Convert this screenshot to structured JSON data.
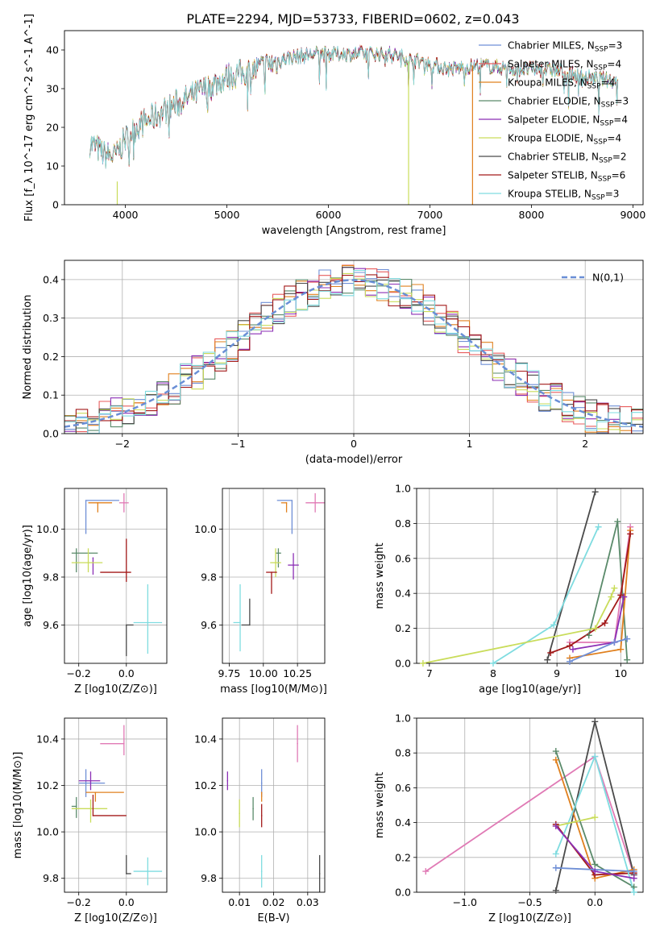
{
  "figure_title": "PLATE=2294, MJD=53733, FIBERID=0602, z=0.043",
  "colors": {
    "Chabrier MILES": "#6f8fd6",
    "Salpeter MILES": "#e85d5d",
    "Kroupa MILES": "#e0801e",
    "Chabrier ELODIE": "#5a8a6a",
    "Salpeter ELODIE": "#8b2fb5",
    "Kroupa ELODIE": "#c9dc5a",
    "Chabrier STELIB": "#4a4a4a",
    "Salpeter STELIB": "#a31a1a",
    "Kroupa STELIB": "#7fdce0",
    "pink": "#e07ab5",
    "gaussian": "#6a8fd6"
  },
  "chart_data": [
    {
      "id": "spectrum",
      "type": "line",
      "xlabel": "wavelength [Angstrom, rest frame]",
      "ylabel": "Flux [f_λ 10^-17 erg cm^-2 s^-1 A^-1]",
      "xlim": [
        3400,
        9100
      ],
      "ylim": [
        0,
        45
      ],
      "xticks": [
        4000,
        5000,
        6000,
        7000,
        8000,
        9000
      ],
      "yticks": [
        0,
        10,
        20,
        30,
        40
      ],
      "legend_position": "top-right",
      "legend": [
        {
          "label": "Chabrier MILES, N_SSP=3",
          "color": "#6f8fd6"
        },
        {
          "label": "Salpeter MILES, N_SSP=4",
          "color": "#e85d5d"
        },
        {
          "label": "Kroupa MILES, N_SSP=4",
          "color": "#e0801e"
        },
        {
          "label": "Chabrier ELODIE, N_SSP=3",
          "color": "#5a8a6a"
        },
        {
          "label": "Salpeter ELODIE, N_SSP=4",
          "color": "#8b2fb5"
        },
        {
          "label": "Kroupa ELODIE, N_SSP=4",
          "color": "#c9dc5a"
        },
        {
          "label": "Chabrier STELIB, N_SSP=2",
          "color": "#4a4a4a"
        },
        {
          "label": "Salpeter STELIB, N_SSP=6",
          "color": "#a31a1a"
        },
        {
          "label": "Kroupa STELIB, N_SSP=3",
          "color": "#7fdce0"
        }
      ],
      "continuum_x": [
        3650,
        3800,
        3900,
        4000,
        4100,
        4300,
        4500,
        4800,
        5000,
        5300,
        5600,
        5900,
        6200,
        6600,
        6900,
        7200,
        7500,
        7900,
        8200,
        8500,
        8850
      ],
      "continuum_y": [
        16,
        13,
        12.5,
        17,
        20,
        23,
        26,
        30,
        33,
        35,
        38,
        39,
        39,
        39,
        37,
        35,
        36,
        35,
        35,
        33,
        32
      ],
      "artifacts": [
        {
          "x": 3920,
          "ymin": 0,
          "ymax": 6,
          "color": "#c9dc5a"
        },
        {
          "x": 6790,
          "ymin": 0,
          "ymax": 37,
          "color": "#c9dc5a"
        },
        {
          "x": 7420,
          "ymin": 0,
          "ymax": 36,
          "color": "#e0801e"
        }
      ]
    },
    {
      "id": "residuals",
      "type": "line",
      "xlabel": "(data-model)/error",
      "ylabel": "Normed distribution",
      "xlim": [
        -2.5,
        2.5
      ],
      "ylim": [
        0,
        0.45
      ],
      "xticks": [
        -2,
        -1,
        0,
        1,
        2
      ],
      "yticks": [
        0.0,
        0.1,
        0.2,
        0.3,
        0.4
      ],
      "grid": true,
      "legend_position": "top-right",
      "gaussian_label": "N(0,1)"
    },
    {
      "id": "age-vs-Z",
      "type": "scatter",
      "xlabel": "Z [log10(Z/Z⊙)]",
      "ylabel": "age [log10(age/yr)]",
      "xlim": [
        -0.26,
        0.17
      ],
      "ylim": [
        9.44,
        10.17
      ],
      "xticks": [
        -0.2,
        0.0
      ],
      "yticks": [
        9.6,
        9.8,
        10.0
      ],
      "grid": true,
      "points": [
        {
          "x": -0.17,
          "y": 10.12,
          "xerr": [
            0.0,
            0.14
          ],
          "yerr": [
            0.14,
            0.0
          ],
          "color": "#6f8fd6"
        },
        {
          "x": -0.12,
          "y": 10.11,
          "xerr": [
            0.04,
            0.06
          ],
          "yerr": [
            0.04,
            0.0
          ],
          "color": "#e0801e"
        },
        {
          "x": -0.01,
          "y": 10.11,
          "xerr": [
            0.02,
            0.02
          ],
          "yerr": [
            0.04,
            0.04
          ],
          "color": "#e07ab5"
        },
        {
          "x": -0.21,
          "y": 9.9,
          "xerr": [
            0.02,
            0.09
          ],
          "yerr": [
            0.08,
            0.02
          ],
          "color": "#5a8a6a"
        },
        {
          "x": -0.14,
          "y": 9.88,
          "xerr": [
            0.0,
            0.0
          ],
          "yerr": [
            0.07,
            0.0
          ],
          "color": "#8b2fb5"
        },
        {
          "x": -0.16,
          "y": 9.86,
          "xerr": [
            0.07,
            0.06
          ],
          "yerr": [
            0.04,
            0.06
          ],
          "color": "#c9dc5a"
        },
        {
          "x": 0.0,
          "y": 9.82,
          "xerr": [
            0.11,
            0.02
          ],
          "yerr": [
            0.04,
            0.14
          ],
          "color": "#a31a1a"
        },
        {
          "x": 0.0,
          "y": 9.6,
          "xerr": [
            0.0,
            0.03
          ],
          "yerr": [
            0.13,
            0.0
          ],
          "color": "#4a4a4a"
        },
        {
          "x": 0.09,
          "y": 9.61,
          "xerr": [
            0.06,
            0.06
          ],
          "yerr": [
            0.13,
            0.16
          ],
          "color": "#7fdce0"
        }
      ]
    },
    {
      "id": "age-vs-mass",
      "type": "scatter",
      "xlabel": "mass [log10(M/M⊙)]",
      "ylabel": "",
      "xlim": [
        9.7,
        10.45
      ],
      "ylim": [
        9.44,
        10.17
      ],
      "xticks": [
        9.75,
        10.0,
        10.25
      ],
      "yticks": [
        9.6,
        9.8,
        10.0
      ],
      "grid": true,
      "points": [
        {
          "x": 10.21,
          "y": 10.12,
          "xerr": [
            0.11,
            0.0
          ],
          "yerr": [
            0.14,
            0.0
          ],
          "color": "#6f8fd6"
        },
        {
          "x": 10.17,
          "y": 10.11,
          "xerr": [
            0.04,
            0.0
          ],
          "yerr": [
            0.04,
            0.0
          ],
          "color": "#e0801e"
        },
        {
          "x": 10.38,
          "y": 10.11,
          "xerr": [
            0.07,
            0.07
          ],
          "yerr": [
            0.04,
            0.04
          ],
          "color": "#e07ab5"
        },
        {
          "x": 10.11,
          "y": 9.9,
          "xerr": [
            0.02,
            0.02
          ],
          "yerr": [
            0.06,
            0.02
          ],
          "color": "#5a8a6a"
        },
        {
          "x": 10.22,
          "y": 9.85,
          "xerr": [
            0.04,
            0.04
          ],
          "yerr": [
            0.06,
            0.05
          ],
          "color": "#8b2fb5"
        },
        {
          "x": 10.09,
          "y": 9.86,
          "xerr": [
            0.04,
            0.04
          ],
          "yerr": [
            0.06,
            0.06
          ],
          "color": "#c9dc5a"
        },
        {
          "x": 10.06,
          "y": 9.82,
          "xerr": [
            0.04,
            0.04
          ],
          "yerr": [
            0.09,
            0.0
          ],
          "color": "#a31a1a"
        },
        {
          "x": 9.9,
          "y": 9.6,
          "xerr": [
            0.06,
            0.0
          ],
          "yerr": [
            0.0,
            0.11
          ],
          "color": "#4a4a4a"
        },
        {
          "x": 9.83,
          "y": 9.61,
          "xerr": [
            0.05,
            0.0
          ],
          "yerr": [
            0.12,
            0.16
          ],
          "color": "#7fdce0"
        }
      ]
    },
    {
      "id": "weight-vs-age",
      "type": "line",
      "xlabel": "age [log10(age/yr)]",
      "ylabel": "mass weight",
      "xlim": [
        6.8,
        10.35
      ],
      "ylim": [
        0,
        1.0
      ],
      "xticks": [
        7,
        8,
        9,
        10
      ],
      "yticks": [
        0.0,
        0.2,
        0.4,
        0.6,
        0.8,
        1.0
      ],
      "grid": true,
      "series": [
        {
          "color": "#4a4a4a",
          "x": [
            8.85,
            9.6
          ],
          "y": [
            0.02,
            0.98
          ]
        },
        {
          "color": "#7fdce0",
          "x": [
            8.0,
            8.95,
            9.65
          ],
          "y": [
            0.0,
            0.22,
            0.78
          ]
        },
        {
          "color": "#5a8a6a",
          "x": [
            9.5,
            9.95,
            10.1
          ],
          "y": [
            0.16,
            0.81,
            0.02
          ]
        },
        {
          "color": "#e07ab5",
          "x": [
            9.2,
            9.9,
            10.15
          ],
          "y": [
            0.12,
            0.12,
            0.78
          ]
        },
        {
          "color": "#e0801e",
          "x": [
            9.2,
            10.0,
            10.15
          ],
          "y": [
            0.03,
            0.08,
            0.76
          ]
        },
        {
          "color": "#a31a1a",
          "x": [
            8.9,
            9.2,
            9.75,
            10.0,
            10.15
          ],
          "y": [
            0.06,
            0.1,
            0.23,
            0.39,
            0.74
          ]
        },
        {
          "color": "#c9dc5a",
          "x": [
            6.9,
            9.6,
            9.85,
            9.9
          ],
          "y": [
            0.0,
            0.2,
            0.38,
            0.43
          ]
        },
        {
          "color": "#8b2fb5",
          "x": [
            9.25,
            9.9,
            10.05
          ],
          "y": [
            0.08,
            0.12,
            0.38
          ]
        },
        {
          "color": "#6f8fd6",
          "x": [
            9.2,
            9.9,
            10.1
          ],
          "y": [
            0.01,
            0.12,
            0.14
          ]
        }
      ]
    },
    {
      "id": "mass-vs-Z",
      "type": "scatter",
      "xlabel": "Z [log10(Z/Z⊙)]",
      "ylabel": "mass [log10(M/M⊙)]",
      "xlim": [
        -0.26,
        0.17
      ],
      "ylim": [
        9.74,
        10.49
      ],
      "xticks": [
        -0.2,
        0.0
      ],
      "yticks": [
        9.8,
        10.0,
        10.2,
        10.4
      ],
      "grid": true,
      "points": [
        {
          "x": -0.01,
          "y": 10.38,
          "xerr": [
            0.1,
            0.0
          ],
          "yerr": [
            0.05,
            0.08
          ],
          "color": "#e07ab5"
        },
        {
          "x": -0.17,
          "y": 10.21,
          "xerr": [
            0.03,
            0.08
          ],
          "yerr": [
            0.06,
            0.06
          ],
          "color": "#6f8fd6"
        },
        {
          "x": -0.15,
          "y": 10.22,
          "xerr": [
            0.05,
            0.04
          ],
          "yerr": [
            0.04,
            0.04
          ],
          "color": "#8b2fb5"
        },
        {
          "x": -0.13,
          "y": 10.17,
          "xerr": [
            0.04,
            0.12
          ],
          "yerr": [
            0.04,
            0.0
          ],
          "color": "#e0801e"
        },
        {
          "x": -0.21,
          "y": 10.11,
          "xerr": [
            0.02,
            0.0
          ],
          "yerr": [
            0.05,
            0.04
          ],
          "color": "#5a8a6a"
        },
        {
          "x": -0.15,
          "y": 10.1,
          "xerr": [
            0.08,
            0.07
          ],
          "yerr": [
            0.06,
            0.04
          ],
          "color": "#c9dc5a"
        },
        {
          "x": -0.14,
          "y": 10.07,
          "xerr": [
            0.0,
            0.14
          ],
          "yerr": [
            0.0,
            0.09
          ],
          "color": "#a31a1a"
        },
        {
          "x": 0.0,
          "y": 9.82,
          "xerr": [
            0.0,
            0.02
          ],
          "yerr": [
            0.0,
            0.08
          ],
          "color": "#4a4a4a"
        },
        {
          "x": 0.09,
          "y": 9.83,
          "xerr": [
            0.06,
            0.06
          ],
          "yerr": [
            0.06,
            0.06
          ],
          "color": "#7fdce0"
        }
      ]
    },
    {
      "id": "mass-vs-EBV",
      "type": "scatter",
      "xlabel": "E(B-V)",
      "ylabel": "",
      "xlim": [
        0.005,
        0.035
      ],
      "ylim": [
        9.74,
        10.49
      ],
      "xticks": [
        0.01,
        0.02,
        0.03
      ],
      "yticks": [
        9.8,
        10.0,
        10.2,
        10.4
      ],
      "grid": true,
      "points": [
        {
          "x": 0.027,
          "y": 10.38,
          "yerr": [
            0.08,
            0.08
          ],
          "color": "#e07ab5"
        },
        {
          "x": 0.0165,
          "y": 10.21,
          "yerr": [
            0.06,
            0.06
          ],
          "color": "#6f8fd6"
        },
        {
          "x": 0.0065,
          "y": 10.22,
          "yerr": [
            0.04,
            0.04
          ],
          "color": "#8b2fb5"
        },
        {
          "x": 0.0165,
          "y": 10.17,
          "yerr": [
            0.04,
            0.0
          ],
          "color": "#e0801e"
        },
        {
          "x": 0.014,
          "y": 10.1,
          "yerr": [
            0.05,
            0.05
          ],
          "color": "#5a8a6a"
        },
        {
          "x": 0.01,
          "y": 10.08,
          "yerr": [
            0.06,
            0.06
          ],
          "color": "#c9dc5a"
        },
        {
          "x": 0.0165,
          "y": 10.07,
          "yerr": [
            0.05,
            0.05
          ],
          "color": "#a31a1a"
        },
        {
          "x": 0.0335,
          "y": 9.82,
          "yerr": [
            0.08,
            0.08
          ],
          "color": "#4a4a4a"
        },
        {
          "x": 0.0165,
          "y": 9.83,
          "yerr": [
            0.07,
            0.07
          ],
          "color": "#7fdce0"
        }
      ]
    },
    {
      "id": "weight-vs-Z",
      "type": "line",
      "xlabel": "Z [log10(Z/Z⊙)]",
      "ylabel": "mass weight",
      "xlim": [
        -1.37,
        0.37
      ],
      "ylim": [
        0,
        1.0
      ],
      "xticks": [
        -1.0,
        -0.5,
        0.0
      ],
      "yticks": [
        0.0,
        0.2,
        0.4,
        0.6,
        0.8,
        1.0
      ],
      "grid": true,
      "series": [
        {
          "color": "#e07ab5",
          "x": [
            -1.3,
            0.0,
            0.3
          ],
          "y": [
            0.12,
            0.78,
            0.1
          ]
        },
        {
          "color": "#4a4a4a",
          "x": [
            -0.3,
            0.0,
            0.3
          ],
          "y": [
            0.01,
            0.98,
            0.1
          ]
        },
        {
          "color": "#5a8a6a",
          "x": [
            -0.3,
            0.0,
            0.3
          ],
          "y": [
            0.81,
            0.16,
            0.03
          ]
        },
        {
          "color": "#e0801e",
          "x": [
            -0.3,
            0.0,
            0.3
          ],
          "y": [
            0.76,
            0.08,
            0.13
          ]
        },
        {
          "color": "#a31a1a",
          "x": [
            -0.3,
            0.0,
            0.3
          ],
          "y": [
            0.39,
            0.1,
            0.11
          ]
        },
        {
          "color": "#7fdce0",
          "x": [
            -0.3,
            0.0,
            0.3
          ],
          "y": [
            0.22,
            0.78,
            0.0
          ]
        },
        {
          "color": "#c9dc5a",
          "x": [
            -0.3,
            0.0
          ],
          "y": [
            0.38,
            0.43
          ]
        },
        {
          "color": "#8b2fb5",
          "x": [
            -0.3,
            0.0,
            0.3
          ],
          "y": [
            0.38,
            0.12,
            0.08
          ]
        },
        {
          "color": "#6f8fd6",
          "x": [
            -0.3,
            0.3
          ],
          "y": [
            0.14,
            0.12
          ]
        }
      ]
    }
  ]
}
